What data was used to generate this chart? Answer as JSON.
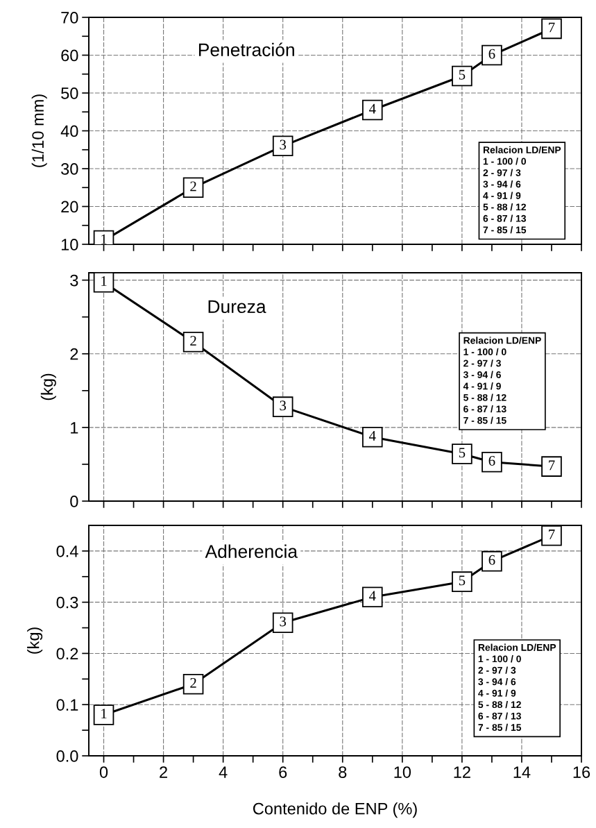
{
  "chart_data": [
    {
      "type": "line",
      "title": "Penetración",
      "ylabel": "(1/10 mm)",
      "x": [
        0,
        3,
        6,
        9,
        12,
        13,
        15
      ],
      "series": [
        {
          "color": "#000000",
          "values": [
            11,
            25,
            36,
            45.5,
            54.5,
            60,
            67
          ]
        }
      ],
      "xlim": [
        -0.5,
        16
      ],
      "xticks": [
        {
          "value": 0,
          "label": null
        },
        {
          "value": 1,
          "label": null
        },
        {
          "value": 2,
          "label": null
        },
        {
          "value": 3,
          "label": null
        },
        {
          "value": 4,
          "label": null
        },
        {
          "value": 5,
          "label": null
        },
        {
          "value": 6,
          "label": null
        },
        {
          "value": 7,
          "label": null
        },
        {
          "value": 8,
          "label": null
        },
        {
          "value": 9,
          "label": null
        },
        {
          "value": 10,
          "label": null
        },
        {
          "value": 11,
          "label": null
        },
        {
          "value": 12,
          "label": null
        },
        {
          "value": 13,
          "label": null
        },
        {
          "value": 14,
          "label": null
        },
        {
          "value": 15,
          "label": null
        },
        {
          "value": 16,
          "label": null
        }
      ],
      "ylim": [
        10,
        70
      ],
      "yticks": [
        10,
        {
          "value": 15,
          "label": null
        },
        20,
        {
          "value": 25,
          "label": null
        },
        30,
        {
          "value": 35,
          "label": null
        },
        40,
        {
          "value": 45,
          "label": null
        },
        50,
        {
          "value": 55,
          "label": null
        },
        60,
        {
          "value": 65,
          "label": null
        },
        70
      ],
      "tick_labels": "y",
      "grid": true,
      "marker": "square",
      "line_style": "solid",
      "annotations": [
        {
          "text": "1",
          "x": 0,
          "y": 11
        },
        {
          "text": "2",
          "x": 3,
          "y": 25
        },
        {
          "text": "3",
          "x": 6,
          "y": 36
        },
        {
          "text": "4",
          "x": 9,
          "y": 45.5
        },
        {
          "text": "5",
          "x": 12,
          "y": 54.5
        },
        {
          "text": "6",
          "x": 13,
          "y": 60
        },
        {
          "text": "7",
          "x": 15,
          "y": 67
        },
        "Relacion LD/ENP",
        "1 - 100 / 0",
        "2 - 97 / 3",
        "3 - 94 / 6",
        "4 - 91 / 9",
        "5 - 88 / 12",
        "6 - 87 / 13",
        "7 - 85 / 15"
      ]
    },
    {
      "type": "line",
      "title": "Dureza",
      "ylabel": "(kg)",
      "x": [
        0,
        3,
        6,
        9,
        12,
        13,
        15
      ],
      "series": [
        {
          "color": "#000000",
          "values": [
            2.97,
            2.16,
            1.28,
            0.87,
            0.64,
            0.53,
            0.47
          ]
        }
      ],
      "xlim": [
        -0.5,
        16
      ],
      "xticks": [
        {
          "value": 0,
          "label": null
        },
        {
          "value": 1,
          "label": null
        },
        {
          "value": 2,
          "label": null
        },
        {
          "value": 3,
          "label": null
        },
        {
          "value": 4,
          "label": null
        },
        {
          "value": 5,
          "label": null
        },
        {
          "value": 6,
          "label": null
        },
        {
          "value": 7,
          "label": null
        },
        {
          "value": 8,
          "label": null
        },
        {
          "value": 9,
          "label": null
        },
        {
          "value": 10,
          "label": null
        },
        {
          "value": 11,
          "label": null
        },
        {
          "value": 12,
          "label": null
        },
        {
          "value": 13,
          "label": null
        },
        {
          "value": 14,
          "label": null
        },
        {
          "value": 15,
          "label": null
        },
        {
          "value": 16,
          "label": null
        }
      ],
      "ylim": [
        0,
        3.1
      ],
      "yticks": [
        0,
        {
          "value": 0.5,
          "label": null
        },
        1,
        {
          "value": 1.5,
          "label": null
        },
        2,
        {
          "value": 2.5,
          "label": null
        },
        3
      ],
      "tick_labels": "y",
      "grid": true,
      "marker": "square",
      "line_style": "solid",
      "annotations": [
        {
          "text": "1",
          "x": 0,
          "y": 2.97
        },
        {
          "text": "2",
          "x": 3,
          "y": 2.16
        },
        {
          "text": "3",
          "x": 6,
          "y": 1.28
        },
        {
          "text": "4",
          "x": 9,
          "y": 0.87
        },
        {
          "text": "5",
          "x": 12,
          "y": 0.64
        },
        {
          "text": "6",
          "x": 13,
          "y": 0.53
        },
        {
          "text": "7",
          "x": 15,
          "y": 0.47
        },
        "Relacion LD/ENP",
        "1 - 100 / 0",
        "2 - 97 / 3",
        "3 - 94 / 6",
        "4 - 91 / 9",
        "5 - 88 / 12",
        "6 - 87 / 13",
        "7 - 85 / 15"
      ]
    },
    {
      "type": "line",
      "title": "Adherencia",
      "ylabel": "(kg)",
      "xlabel": "Contenido de ENP (%)",
      "x": [
        0,
        3,
        6,
        9,
        12,
        13,
        15
      ],
      "series": [
        {
          "color": "#000000",
          "values": [
            0.08,
            0.14,
            0.26,
            0.31,
            0.34,
            0.38,
            0.43
          ]
        }
      ],
      "xlim": [
        -0.5,
        16
      ],
      "xticks": [
        0,
        {
          "value": 1,
          "label": null
        },
        2,
        {
          "value": 3,
          "label": null
        },
        4,
        {
          "value": 5,
          "label": null
        },
        6,
        {
          "value": 7,
          "label": null
        },
        8,
        {
          "value": 9,
          "label": null
        },
        10,
        {
          "value": 11,
          "label": null
        },
        12,
        {
          "value": 13,
          "label": null
        },
        14,
        {
          "value": 15,
          "label": null
        },
        16
      ],
      "ylim": [
        0,
        0.45
      ],
      "yticks": [
        {
          "value": 0,
          "label": "0.0"
        },
        {
          "value": 0.05,
          "label": null
        },
        0.1,
        {
          "value": 0.15,
          "label": null
        },
        0.2,
        {
          "value": 0.25,
          "label": null
        },
        0.3,
        {
          "value": 0.35,
          "label": null
        },
        0.4
      ],
      "grid": true,
      "marker": "square",
      "line_style": "solid",
      "annotations": [
        {
          "text": "1",
          "x": 0,
          "y": 0.08
        },
        {
          "text": "2",
          "x": 3,
          "y": 0.14
        },
        {
          "text": "3",
          "x": 6,
          "y": 0.26
        },
        {
          "text": "4",
          "x": 9,
          "y": 0.31
        },
        {
          "text": "5",
          "x": 12,
          "y": 0.34
        },
        {
          "text": "6",
          "x": 13,
          "y": 0.38
        },
        {
          "text": "7",
          "x": 15,
          "y": 0.43
        },
        "Relacion LD/ENP",
        "1 - 100 / 0",
        "2 - 97 / 3",
        "3 - 94 / 6",
        "4 - 91 / 9",
        "5 - 88 / 12",
        "6 - 87 / 13",
        "7 - 85 / 15"
      ]
    }
  ]
}
